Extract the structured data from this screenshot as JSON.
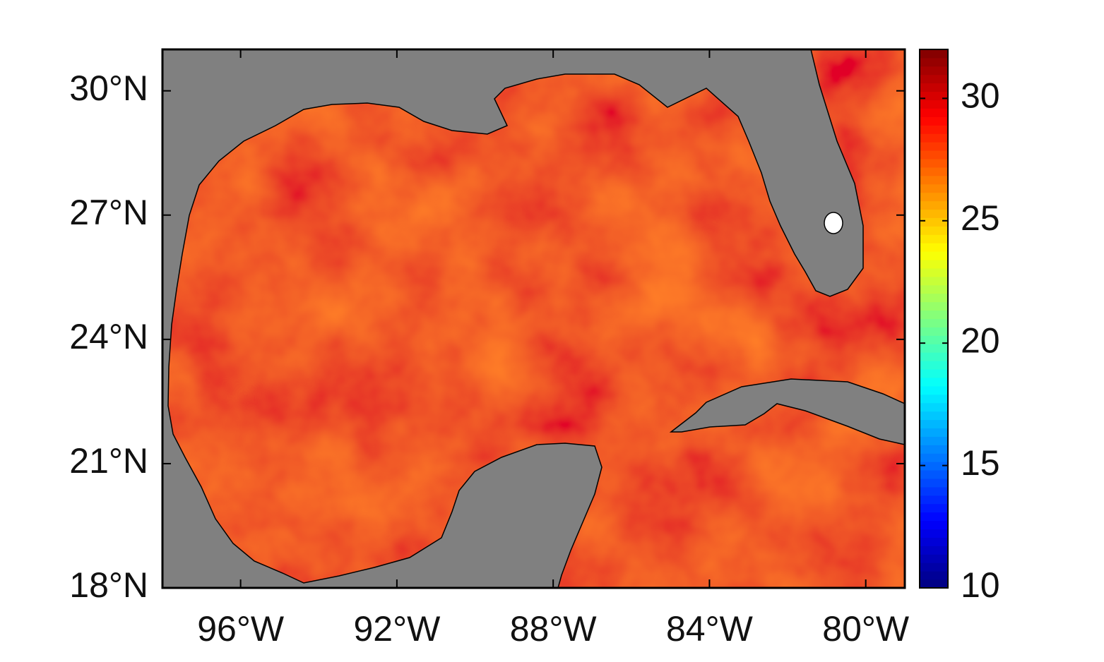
{
  "chart_data": {
    "type": "map",
    "xlim": [
      -98,
      -79
    ],
    "ylim": [
      18,
      31
    ],
    "xticks": [
      {
        "value": -96,
        "label": "96°W"
      },
      {
        "value": -92,
        "label": "92°W"
      },
      {
        "value": -88,
        "label": "88°W"
      },
      {
        "value": -84,
        "label": "84°W"
      },
      {
        "value": -80,
        "label": "80°W"
      }
    ],
    "yticks": [
      {
        "value": 18,
        "label": "18°N"
      },
      {
        "value": 21,
        "label": "21°N"
      },
      {
        "value": 24,
        "label": "24°N"
      },
      {
        "value": 27,
        "label": "27°N"
      },
      {
        "value": 30,
        "label": "30°N"
      }
    ],
    "colorbar": {
      "lim": [
        10,
        32
      ],
      "ticks": [
        10,
        15,
        20,
        25,
        30
      ],
      "colormap": "jet"
    },
    "land_color": "#808080"
  }
}
